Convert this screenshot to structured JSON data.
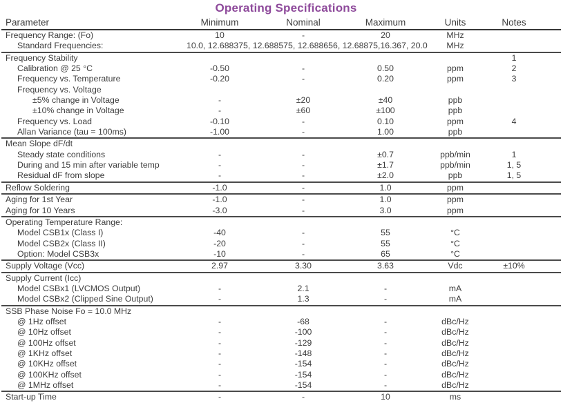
{
  "title": "Operating Specifications",
  "accent_color": "#8e4a9b",
  "table": {
    "headers": {
      "parameter": "Parameter",
      "minimum": "Minimum",
      "nominal": "Nominal",
      "maximum": "Maximum",
      "units": "Units",
      "notes": "Notes"
    },
    "rows": [
      {
        "param": "Frequency Range: (Fo)",
        "min": "10",
        "nom": "-",
        "max": "20",
        "units": "MHz",
        "notes": "",
        "indent": 0
      },
      {
        "param": "Standard Frequencies:",
        "span_value": "10.0, 12.688375, 12.688575, 12.688656, 12.68875,16.367, 20.0",
        "units": "MHz",
        "notes": "",
        "indent": 1,
        "rule_below": true
      },
      {
        "param": "Frequency Stability",
        "min": "",
        "nom": "",
        "max": "",
        "units": "",
        "notes": "1",
        "indent": 0
      },
      {
        "param": "Calibration @ 25 °C",
        "min": "-0.50",
        "nom": "-",
        "max": "0.50",
        "units": "ppm",
        "notes": "2",
        "indent": 1
      },
      {
        "param": "Frequency vs. Temperature",
        "min": "-0.20",
        "nom": "-",
        "max": "0.20",
        "units": "ppm",
        "notes": "3",
        "indent": 1
      },
      {
        "param": "Frequency vs. Voltage",
        "min": "",
        "nom": "",
        "max": "",
        "units": "",
        "notes": "",
        "indent": 1
      },
      {
        "param": "±5% change in Voltage",
        "min": "-",
        "nom": "±20",
        "max": "±40",
        "units": "ppb",
        "notes": "",
        "indent": 2
      },
      {
        "param": "±10% change in Voltage",
        "min": "-",
        "nom": "±60",
        "max": "±100",
        "units": "ppb",
        "notes": "",
        "indent": 2
      },
      {
        "param": "Frequency vs. Load",
        "min": "-0.10",
        "nom": "-",
        "max": "0.10",
        "units": "ppm",
        "notes": "4",
        "indent": 1
      },
      {
        "param": "Allan Variance (tau = 100ms)",
        "min": "-1.00",
        "nom": "-",
        "max": "1.00",
        "units": "ppb",
        "notes": "",
        "indent": 1,
        "rule_below": true
      },
      {
        "param": "Mean Slope dF/dt",
        "min": "",
        "nom": "",
        "max": "",
        "units": "",
        "notes": "",
        "indent": 0
      },
      {
        "param": "Steady state conditions",
        "min": "-",
        "nom": "-",
        "max": "±0.7",
        "units": "ppb/min",
        "notes": "1",
        "indent": 1
      },
      {
        "param": "During and 15 min after variable temp",
        "min": "-",
        "nom": "-",
        "max": "±1.7",
        "units": "ppb/min",
        "notes": "1, 5",
        "indent": 1
      },
      {
        "param": "Residual dF from slope",
        "min": "-",
        "nom": "-",
        "max": "±2.0",
        "units": "ppb",
        "notes": "1, 5",
        "indent": 1,
        "rule_below": true
      },
      {
        "param": "Reflow Soldering",
        "min": "-1.0",
        "nom": "-",
        "max": "1.0",
        "units": "ppm",
        "notes": "",
        "indent": 0,
        "rule_below": true
      },
      {
        "param": "Aging for 1st Year",
        "min": "-1.0",
        "nom": "-",
        "max": "1.0",
        "units": "ppm",
        "notes": "",
        "indent": 0
      },
      {
        "param": "Aging for 10 Years",
        "min": "-3.0",
        "nom": "-",
        "max": "3.0",
        "units": "ppm",
        "notes": "",
        "indent": 0,
        "rule_below": true
      },
      {
        "param": "Operating Temperature Range:",
        "min": "",
        "nom": "",
        "max": "",
        "units": "",
        "notes": "",
        "indent": 0
      },
      {
        "param": "Model CSB1x (Class I)",
        "min": "-40",
        "nom": "-",
        "max": "55",
        "units": "°C",
        "notes": "",
        "indent": 1
      },
      {
        "param": "Model CSB2x (Class II)",
        "min": "-20",
        "nom": "-",
        "max": "55",
        "units": "°C",
        "notes": "",
        "indent": 1
      },
      {
        "param": "Option: Model CSB3x",
        "min": "-10",
        "nom": "-",
        "max": "65",
        "units": "°C",
        "notes": "",
        "indent": 1,
        "rule_below": true
      },
      {
        "param": "Supply Voltage (Vcc)",
        "min": "2.97",
        "nom": "3.30",
        "max": "3.63",
        "units": "Vdc",
        "notes": "±10%",
        "indent": 0,
        "rule_below": true
      },
      {
        "param": "Supply Current (Icc)",
        "min": "",
        "nom": "",
        "max": "",
        "units": "",
        "notes": "",
        "indent": 0
      },
      {
        "param": "Model CSBx1 (LVCMOS Output)",
        "min": "-",
        "nom": "2.1",
        "max": "-",
        "units": "mA",
        "notes": "",
        "indent": 1
      },
      {
        "param": "Model CSBx2 (Clipped Sine Output)",
        "min": "-",
        "nom": "1.3",
        "max": "-",
        "units": "mA",
        "notes": "",
        "indent": 1,
        "rule_below": true
      },
      {
        "param": "SSB Phase Noise Fo = 10.0 MHz",
        "min": "",
        "nom": "",
        "max": "",
        "units": "",
        "notes": "",
        "indent": 0
      },
      {
        "param": "@ 1Hz offset",
        "min": "-",
        "nom": "-68",
        "max": "-",
        "units": "dBc/Hz",
        "notes": "",
        "indent": 1
      },
      {
        "param": "@ 10Hz offset",
        "min": "-",
        "nom": "-100",
        "max": "-",
        "units": "dBc/Hz",
        "notes": "",
        "indent": 1
      },
      {
        "param": "@ 100Hz offset",
        "min": "-",
        "nom": "-129",
        "max": "-",
        "units": "dBc/Hz",
        "notes": "",
        "indent": 1
      },
      {
        "param": "@ 1KHz offset",
        "min": "-",
        "nom": "-148",
        "max": "-",
        "units": "dBc/Hz",
        "notes": "",
        "indent": 1
      },
      {
        "param": "@ 10KHz offset",
        "min": "-",
        "nom": "-154",
        "max": "-",
        "units": "dBc/Hz",
        "notes": "",
        "indent": 1
      },
      {
        "param": "@ 100KHz offset",
        "min": "-",
        "nom": "-154",
        "max": "-",
        "units": "dBc/Hz",
        "notes": "",
        "indent": 1
      },
      {
        "param": "@ 1MHz offset",
        "min": "-",
        "nom": "-154",
        "max": "-",
        "units": "dBc/Hz",
        "notes": "",
        "indent": 1,
        "rule_below": true
      },
      {
        "param": "Start-up Time",
        "min": "-",
        "nom": "-",
        "max": "10",
        "units": "ms",
        "notes": "",
        "indent": 0,
        "rule_below": true
      }
    ]
  }
}
